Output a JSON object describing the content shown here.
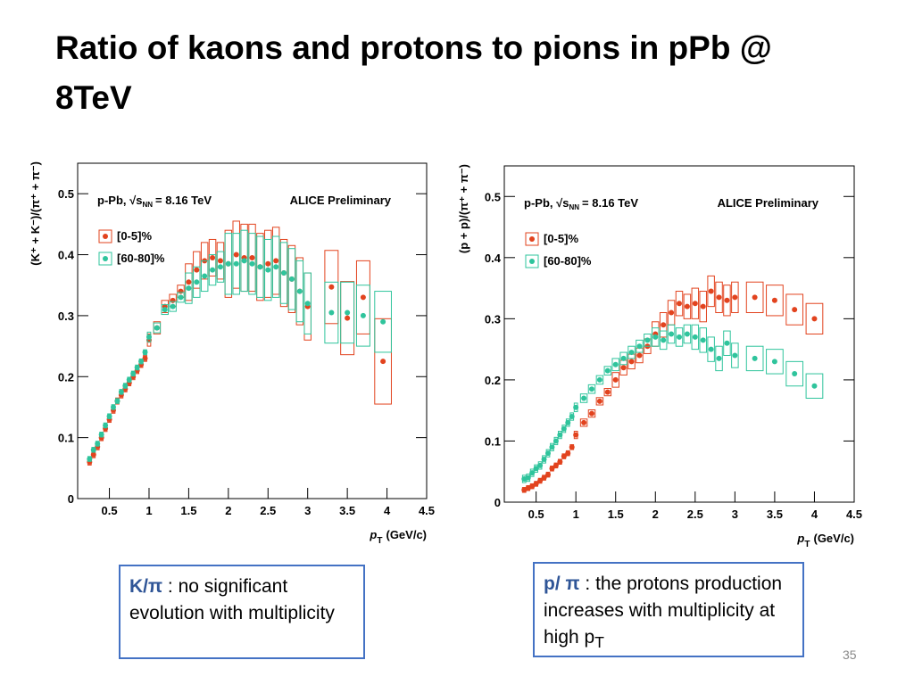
{
  "title": "Ratio of kaons and protons to pions in pPb @ 8TeV",
  "chart_data": [
    {
      "type": "scatter",
      "y_label": "(K⁺ + K⁻)/(π⁺ + π⁻)",
      "x_label": {
        "text": "p",
        "sub": "T",
        "suffix": "(GeV/c)"
      },
      "energy": {
        "prefix": "p-Pb, √s",
        "sub": "NN",
        "suffix": "= 8.16 TeV"
      },
      "annotation": "ALICE Preliminary",
      "xlim": [
        0.1,
        4.5
      ],
      "xticks": [
        0.5,
        1,
        1.5,
        2,
        2.5,
        3,
        3.5,
        4,
        4.5
      ],
      "ylim": [
        0,
        0.55
      ],
      "yticks": [
        0,
        0.1,
        0.2,
        0.3,
        0.4,
        0.5
      ],
      "x": [
        0.25,
        0.3,
        0.35,
        0.4,
        0.45,
        0.5,
        0.55,
        0.6,
        0.65,
        0.7,
        0.75,
        0.8,
        0.85,
        0.9,
        0.95,
        1.0,
        1.1,
        1.2,
        1.3,
        1.4,
        1.5,
        1.6,
        1.7,
        1.8,
        1.9,
        2.0,
        2.1,
        2.2,
        2.3,
        2.4,
        2.5,
        2.6,
        2.7,
        2.8,
        2.9,
        3.0,
        3.3,
        3.5,
        3.7,
        3.95
      ],
      "series": [
        {
          "name": "[0-5]%",
          "color": "#e2431e",
          "values": [
            0.06,
            0.072,
            0.085,
            0.1,
            0.115,
            0.13,
            0.145,
            0.16,
            0.17,
            0.18,
            0.19,
            0.2,
            0.21,
            0.22,
            0.23,
            0.26,
            0.28,
            0.315,
            0.325,
            0.34,
            0.355,
            0.375,
            0.39,
            0.395,
            0.39,
            0.385,
            0.4,
            0.395,
            0.395,
            0.38,
            0.385,
            0.39,
            0.37,
            0.36,
            0.34,
            0.315,
            0.347,
            0.296,
            0.33,
            0.225
          ],
          "syst": [
            0.005,
            0.005,
            0.005,
            0.005,
            0.005,
            0.005,
            0.005,
            0.005,
            0.005,
            0.005,
            0.005,
            0.005,
            0.005,
            0.005,
            0.005,
            0.01,
            0.01,
            0.01,
            0.01,
            0.01,
            0.03,
            0.03,
            0.03,
            0.03,
            0.03,
            0.055,
            0.055,
            0.055,
            0.055,
            0.055,
            0.055,
            0.055,
            0.055,
            0.055,
            0.055,
            0.055,
            0.06,
            0.06,
            0.06,
            0.07
          ]
        },
        {
          "name": "[60-80]%",
          "color": "#2fc49c",
          "values": [
            0.065,
            0.08,
            0.09,
            0.105,
            0.12,
            0.135,
            0.15,
            0.16,
            0.175,
            0.185,
            0.195,
            0.205,
            0.215,
            0.225,
            0.24,
            0.265,
            0.28,
            0.31,
            0.315,
            0.33,
            0.345,
            0.355,
            0.365,
            0.375,
            0.38,
            0.385,
            0.385,
            0.39,
            0.385,
            0.38,
            0.375,
            0.38,
            0.37,
            0.36,
            0.34,
            0.32,
            0.305,
            0.305,
            0.3,
            0.29
          ],
          "syst": [
            0.004,
            0.004,
            0.004,
            0.004,
            0.004,
            0.004,
            0.004,
            0.004,
            0.004,
            0.004,
            0.004,
            0.004,
            0.004,
            0.004,
            0.004,
            0.008,
            0.008,
            0.008,
            0.008,
            0.008,
            0.025,
            0.025,
            0.025,
            0.025,
            0.025,
            0.05,
            0.05,
            0.05,
            0.05,
            0.05,
            0.05,
            0.05,
            0.05,
            0.05,
            0.05,
            0.05,
            0.05,
            0.05,
            0.05,
            0.05
          ]
        }
      ]
    },
    {
      "type": "scatter",
      "y_label": "(p + p)/(π⁺ + π⁻)",
      "x_label": {
        "text": "p",
        "sub": "T",
        "suffix": "(GeV/c)"
      },
      "energy": {
        "prefix": "p-Pb, √s",
        "sub": "NN",
        "suffix": "= 8.16 TeV"
      },
      "annotation": "ALICE Preliminary",
      "xlim": [
        0.1,
        4.5
      ],
      "xticks": [
        0.5,
        1,
        1.5,
        2,
        2.5,
        3,
        3.5,
        4,
        4.5
      ],
      "ylim": [
        0,
        0.55
      ],
      "yticks": [
        0,
        0.1,
        0.2,
        0.3,
        0.4,
        0.5
      ],
      "x": [
        0.35,
        0.4,
        0.45,
        0.5,
        0.55,
        0.6,
        0.65,
        0.7,
        0.75,
        0.8,
        0.85,
        0.9,
        0.95,
        1.0,
        1.1,
        1.2,
        1.3,
        1.4,
        1.5,
        1.6,
        1.7,
        1.8,
        1.9,
        2.0,
        2.1,
        2.2,
        2.3,
        2.4,
        2.5,
        2.6,
        2.7,
        2.8,
        2.9,
        3.0,
        3.25,
        3.5,
        3.75,
        4.0
      ],
      "series": [
        {
          "name": "[0-5]%",
          "color": "#e2431e",
          "values": [
            0.02,
            0.023,
            0.026,
            0.03,
            0.035,
            0.04,
            0.045,
            0.055,
            0.06,
            0.066,
            0.075,
            0.08,
            0.09,
            0.11,
            0.13,
            0.145,
            0.165,
            0.18,
            0.2,
            0.22,
            0.23,
            0.24,
            0.255,
            0.275,
            0.29,
            0.31,
            0.325,
            0.32,
            0.325,
            0.32,
            0.345,
            0.335,
            0.33,
            0.335,
            0.335,
            0.33,
            0.315,
            0.3
          ],
          "syst": [
            0.004,
            0.004,
            0.004,
            0.004,
            0.004,
            0.004,
            0.004,
            0.004,
            0.004,
            0.004,
            0.004,
            0.004,
            0.004,
            0.006,
            0.006,
            0.006,
            0.006,
            0.006,
            0.012,
            0.012,
            0.012,
            0.012,
            0.012,
            0.02,
            0.02,
            0.02,
            0.02,
            0.02,
            0.025,
            0.025,
            0.025,
            0.025,
            0.025,
            0.025,
            0.025,
            0.025,
            0.025,
            0.025
          ]
        },
        {
          "name": "[60-80]%",
          "color": "#2fc49c",
          "values": [
            0.038,
            0.04,
            0.048,
            0.055,
            0.06,
            0.07,
            0.08,
            0.09,
            0.1,
            0.11,
            0.12,
            0.13,
            0.14,
            0.155,
            0.17,
            0.185,
            0.2,
            0.215,
            0.225,
            0.235,
            0.245,
            0.255,
            0.265,
            0.27,
            0.265,
            0.275,
            0.27,
            0.275,
            0.27,
            0.265,
            0.25,
            0.235,
            0.26,
            0.24,
            0.235,
            0.23,
            0.21,
            0.19
          ],
          "syst": [
            0.006,
            0.006,
            0.006,
            0.006,
            0.006,
            0.006,
            0.006,
            0.006,
            0.006,
            0.006,
            0.006,
            0.006,
            0.006,
            0.007,
            0.007,
            0.007,
            0.007,
            0.007,
            0.01,
            0.01,
            0.01,
            0.01,
            0.01,
            0.015,
            0.015,
            0.015,
            0.015,
            0.015,
            0.02,
            0.02,
            0.02,
            0.02,
            0.02,
            0.02,
            0.02,
            0.02,
            0.02,
            0.02
          ]
        }
      ]
    }
  ],
  "notes": [
    {
      "label": "K/π",
      "text": ": no significant evolution with multiplicity"
    },
    {
      "label": "p/ π",
      "text": ": the protons production increases with multiplicity at high p",
      "sub": "T"
    }
  ],
  "page_number": "35"
}
